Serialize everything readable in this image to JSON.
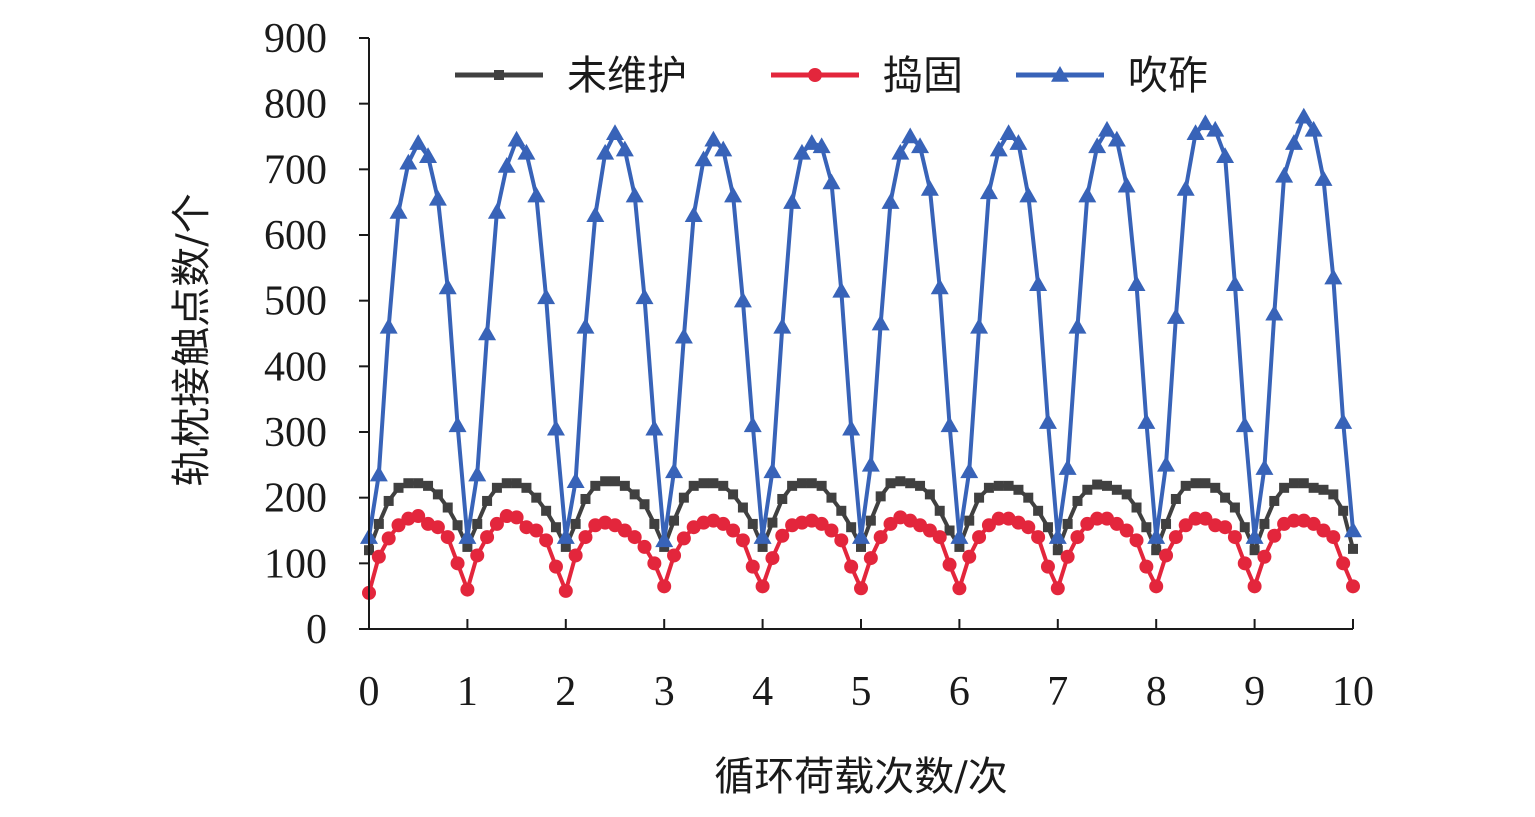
{
  "chart_data": {
    "type": "line",
    "xlabel": "循环荷载次数/次",
    "ylabel": "轨枕接触点数/个",
    "xlim": [
      0,
      10
    ],
    "ylim": [
      0,
      900
    ],
    "xticks": [
      "0",
      "1",
      "2",
      "3",
      "4",
      "5",
      "6",
      "7",
      "8",
      "9",
      "10"
    ],
    "yticks": [
      "0",
      "100",
      "200",
      "300",
      "400",
      "500",
      "600",
      "700",
      "800",
      "900"
    ],
    "grid": false,
    "legend": "top",
    "series": [
      {
        "name": "未维护",
        "color": "#404040",
        "marker": "square",
        "x": [
          0,
          0.1,
          0.2,
          0.3,
          0.4,
          0.5,
          0.6,
          0.7,
          0.8,
          0.9,
          1.0,
          1.1,
          1.2,
          1.3,
          1.4,
          1.5,
          1.6,
          1.7,
          1.8,
          1.9,
          2.0,
          2.1,
          2.2,
          2.3,
          2.4,
          2.5,
          2.6,
          2.7,
          2.8,
          2.9,
          3.0,
          3.1,
          3.2,
          3.3,
          3.4,
          3.5,
          3.6,
          3.7,
          3.8,
          3.9,
          4.0,
          4.1,
          4.2,
          4.3,
          4.4,
          4.5,
          4.6,
          4.7,
          4.8,
          4.9,
          5.0,
          5.1,
          5.2,
          5.3,
          5.4,
          5.5,
          5.6,
          5.7,
          5.8,
          5.9,
          6.0,
          6.1,
          6.2,
          6.3,
          6.4,
          6.5,
          6.6,
          6.7,
          6.8,
          6.9,
          7.0,
          7.1,
          7.2,
          7.3,
          7.4,
          7.5,
          7.6,
          7.7,
          7.8,
          7.9,
          8.0,
          8.1,
          8.2,
          8.3,
          8.4,
          8.5,
          8.6,
          8.7,
          8.8,
          8.9,
          9.0,
          9.1,
          9.2,
          9.3,
          9.4,
          9.5,
          9.6,
          9.7,
          9.8,
          9.9,
          10.0
        ],
        "values": [
          120,
          160,
          195,
          215,
          222,
          222,
          218,
          205,
          185,
          158,
          125,
          160,
          195,
          215,
          222,
          222,
          215,
          200,
          180,
          155,
          125,
          160,
          198,
          218,
          225,
          225,
          218,
          205,
          190,
          160,
          125,
          165,
          200,
          218,
          222,
          222,
          218,
          205,
          185,
          160,
          125,
          162,
          198,
          218,
          222,
          222,
          218,
          200,
          180,
          155,
          125,
          165,
          202,
          222,
          225,
          222,
          218,
          205,
          180,
          150,
          125,
          165,
          200,
          215,
          218,
          218,
          212,
          200,
          180,
          155,
          120,
          160,
          195,
          212,
          220,
          218,
          212,
          205,
          185,
          155,
          120,
          160,
          198,
          218,
          222,
          222,
          215,
          200,
          185,
          155,
          120,
          160,
          195,
          215,
          222,
          222,
          215,
          212,
          205,
          180,
          122
        ]
      },
      {
        "name": "捣固",
        "color": "#e3263c",
        "marker": "circle",
        "x": [
          0,
          0.1,
          0.2,
          0.3,
          0.4,
          0.5,
          0.6,
          0.7,
          0.8,
          0.9,
          1.0,
          1.1,
          1.2,
          1.3,
          1.4,
          1.5,
          1.6,
          1.7,
          1.8,
          1.9,
          2.0,
          2.1,
          2.2,
          2.3,
          2.4,
          2.5,
          2.6,
          2.7,
          2.8,
          2.9,
          3.0,
          3.1,
          3.2,
          3.3,
          3.4,
          3.5,
          3.6,
          3.7,
          3.8,
          3.9,
          4.0,
          4.1,
          4.2,
          4.3,
          4.4,
          4.5,
          4.6,
          4.7,
          4.8,
          4.9,
          5.0,
          5.1,
          5.2,
          5.3,
          5.4,
          5.5,
          5.6,
          5.7,
          5.8,
          5.9,
          6.0,
          6.1,
          6.2,
          6.3,
          6.4,
          6.5,
          6.6,
          6.7,
          6.8,
          6.9,
          7.0,
          7.1,
          7.2,
          7.3,
          7.4,
          7.5,
          7.6,
          7.7,
          7.8,
          7.9,
          8.0,
          8.1,
          8.2,
          8.3,
          8.4,
          8.5,
          8.6,
          8.7,
          8.8,
          8.9,
          9.0,
          9.1,
          9.2,
          9.3,
          9.4,
          9.5,
          9.6,
          9.7,
          9.8,
          9.9,
          10.0
        ],
        "values": [
          55,
          110,
          138,
          158,
          168,
          172,
          160,
          155,
          140,
          100,
          60,
          112,
          140,
          160,
          172,
          170,
          155,
          150,
          135,
          95,
          58,
          112,
          140,
          158,
          162,
          158,
          150,
          140,
          125,
          100,
          65,
          112,
          138,
          155,
          162,
          165,
          160,
          150,
          135,
          95,
          65,
          108,
          142,
          158,
          162,
          165,
          160,
          150,
          135,
          95,
          62,
          108,
          140,
          160,
          170,
          165,
          158,
          150,
          140,
          98,
          62,
          110,
          140,
          158,
          168,
          168,
          162,
          155,
          140,
          95,
          62,
          110,
          140,
          160,
          168,
          168,
          160,
          150,
          135,
          95,
          65,
          112,
          140,
          158,
          168,
          168,
          158,
          155,
          140,
          100,
          65,
          110,
          142,
          160,
          165,
          165,
          160,
          150,
          140,
          100,
          65
        ]
      },
      {
        "name": "吹砟",
        "color": "#3863b8",
        "marker": "triangle",
        "x": [
          0,
          0.1,
          0.2,
          0.3,
          0.4,
          0.5,
          0.6,
          0.7,
          0.8,
          0.9,
          1.0,
          1.1,
          1.2,
          1.3,
          1.4,
          1.5,
          1.6,
          1.7,
          1.8,
          1.9,
          2.0,
          2.1,
          2.2,
          2.3,
          2.4,
          2.5,
          2.6,
          2.7,
          2.8,
          2.9,
          3.0,
          3.1,
          3.2,
          3.3,
          3.4,
          3.5,
          3.6,
          3.7,
          3.8,
          3.9,
          4.0,
          4.1,
          4.2,
          4.3,
          4.4,
          4.5,
          4.6,
          4.7,
          4.8,
          4.9,
          5.0,
          5.1,
          5.2,
          5.3,
          5.4,
          5.5,
          5.6,
          5.7,
          5.8,
          5.9,
          6.0,
          6.1,
          6.2,
          6.3,
          6.4,
          6.5,
          6.6,
          6.7,
          6.8,
          6.9,
          7.0,
          7.1,
          7.2,
          7.3,
          7.4,
          7.5,
          7.6,
          7.7,
          7.8,
          7.9,
          8.0,
          8.1,
          8.2,
          8.3,
          8.4,
          8.5,
          8.6,
          8.7,
          8.8,
          8.9,
          9.0,
          9.1,
          9.2,
          9.3,
          9.4,
          9.5,
          9.6,
          9.7,
          9.8,
          9.9,
          10.0
        ],
        "values": [
          140,
          235,
          460,
          635,
          710,
          740,
          720,
          655,
          520,
          310,
          140,
          235,
          450,
          635,
          705,
          745,
          725,
          660,
          505,
          305,
          140,
          225,
          460,
          630,
          725,
          755,
          730,
          660,
          505,
          305,
          135,
          240,
          445,
          630,
          715,
          745,
          730,
          660,
          500,
          310,
          140,
          240,
          460,
          650,
          725,
          740,
          735,
          680,
          515,
          305,
          140,
          250,
          465,
          650,
          725,
          750,
          735,
          670,
          520,
          310,
          140,
          240,
          460,
          665,
          730,
          755,
          740,
          660,
          525,
          315,
          140,
          245,
          460,
          660,
          735,
          760,
          745,
          675,
          525,
          315,
          140,
          250,
          475,
          670,
          755,
          770,
          760,
          720,
          525,
          310,
          140,
          245,
          480,
          690,
          740,
          780,
          760,
          685,
          535,
          315,
          150
        ]
      }
    ]
  }
}
